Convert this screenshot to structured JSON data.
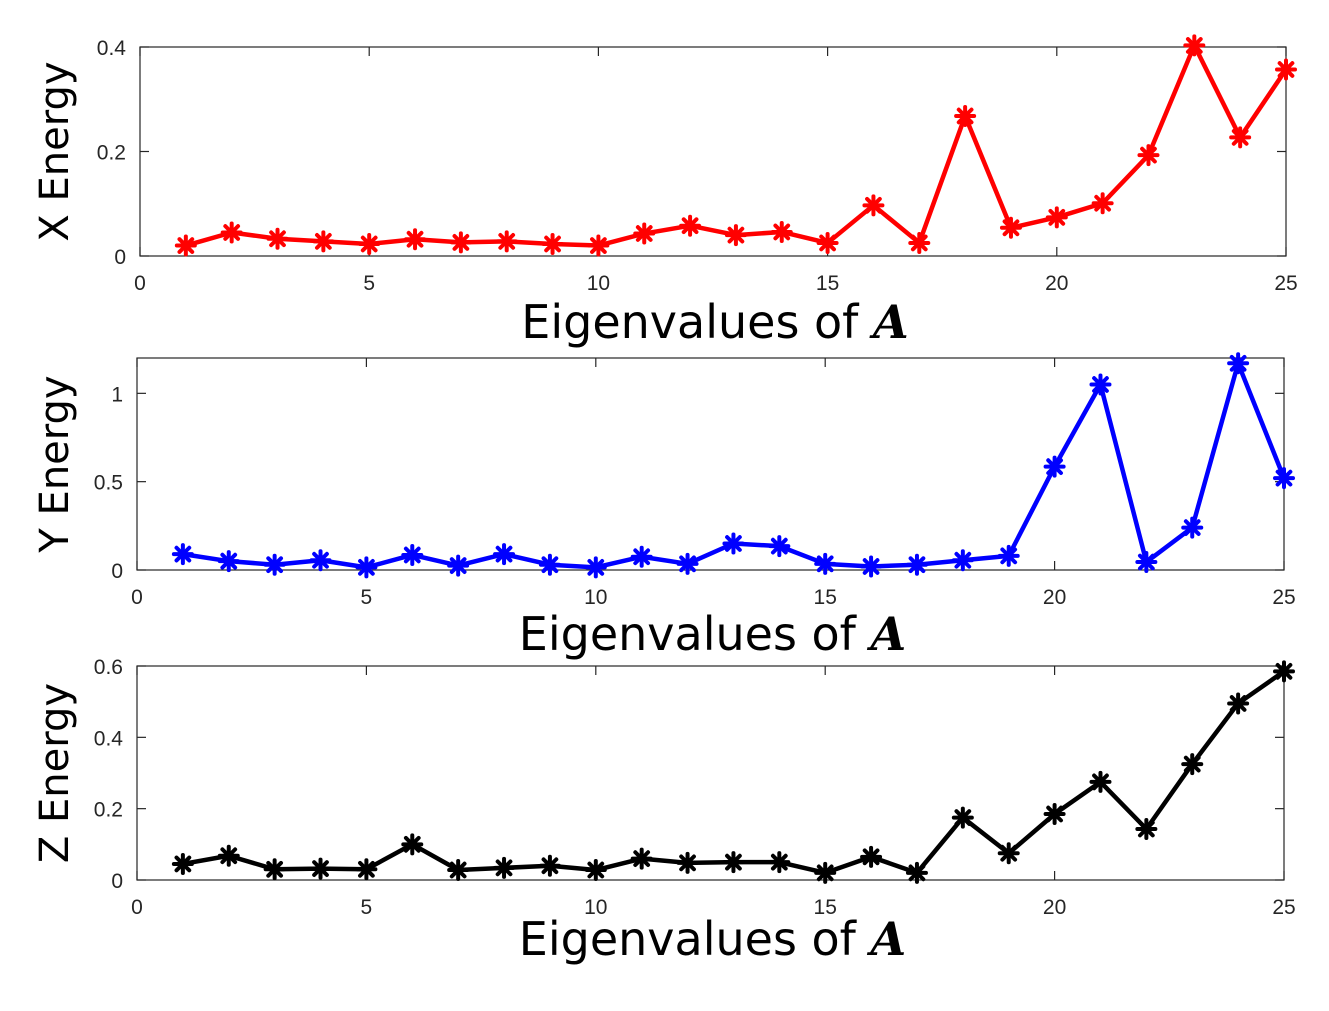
{
  "chart_data": [
    {
      "type": "line",
      "series": [
        {
          "name": "X Energy",
          "color": "#ff0000",
          "values": [
            0.02,
            0.045,
            0.033,
            0.028,
            0.023,
            0.032,
            0.026,
            0.028,
            0.023,
            0.02,
            0.043,
            0.058,
            0.04,
            0.046,
            0.025,
            0.097,
            0.025,
            0.268,
            0.054,
            0.074,
            0.101,
            0.193,
            0.403,
            0.227,
            0.357
          ]
        }
      ],
      "x": [
        1,
        2,
        3,
        4,
        5,
        6,
        7,
        8,
        9,
        10,
        11,
        12,
        13,
        14,
        15,
        16,
        17,
        18,
        19,
        20,
        21,
        22,
        23,
        24,
        25
      ],
      "xlim": [
        0,
        25
      ],
      "ylim": [
        0,
        0.4
      ],
      "xticks": [
        "0",
        "5",
        "10",
        "15",
        "20",
        "25"
      ],
      "yticks": [
        "0",
        "0.2",
        "0.4"
      ],
      "ytick_values": [
        0,
        0.2,
        0.4
      ],
      "xlabel_text": "Eigenvalues of ",
      "xlabel_math": "A",
      "ylabel": "X Energy"
    },
    {
      "type": "line",
      "series": [
        {
          "name": "Y Energy",
          "color": "#0000ff",
          "values": [
            0.09,
            0.05,
            0.03,
            0.055,
            0.015,
            0.085,
            0.025,
            0.09,
            0.03,
            0.015,
            0.075,
            0.035,
            0.15,
            0.135,
            0.035,
            0.02,
            0.03,
            0.055,
            0.08,
            0.585,
            1.05,
            0.045,
            0.24,
            1.17,
            0.52
          ]
        }
      ],
      "x": [
        1,
        2,
        3,
        4,
        5,
        6,
        7,
        8,
        9,
        10,
        11,
        12,
        13,
        14,
        15,
        16,
        17,
        18,
        19,
        20,
        21,
        22,
        23,
        24,
        25
      ],
      "xlim": [
        0,
        25
      ],
      "ylim": [
        0,
        1.2
      ],
      "xticks": [
        "0",
        "5",
        "10",
        "15",
        "20",
        "25"
      ],
      "yticks": [
        "0",
        "0.5",
        "1"
      ],
      "ytick_values": [
        0,
        0.5,
        1
      ],
      "xlabel_text": "Eigenvalues of ",
      "xlabel_math": "A",
      "ylabel": "Y Energy"
    },
    {
      "type": "line",
      "series": [
        {
          "name": "Z Energy",
          "color": "#000000",
          "values": [
            0.045,
            0.068,
            0.03,
            0.032,
            0.03,
            0.1,
            0.028,
            0.034,
            0.04,
            0.028,
            0.06,
            0.048,
            0.05,
            0.05,
            0.02,
            0.065,
            0.02,
            0.175,
            0.075,
            0.185,
            0.275,
            0.143,
            0.325,
            0.495,
            0.585
          ]
        }
      ],
      "x": [
        1,
        2,
        3,
        4,
        5,
        6,
        7,
        8,
        9,
        10,
        11,
        12,
        13,
        14,
        15,
        16,
        17,
        18,
        19,
        20,
        21,
        22,
        23,
        24,
        25
      ],
      "xlim": [
        0,
        25
      ],
      "ylim": [
        0,
        0.6
      ],
      "xticks": [
        "0",
        "5",
        "10",
        "15",
        "20",
        "25"
      ],
      "yticks": [
        "0",
        "0.2",
        "0.4",
        "0.6"
      ],
      "ytick_values": [
        0,
        0.2,
        0.4,
        0.6
      ],
      "xlabel_text": "Eigenvalues of ",
      "xlabel_math": "A",
      "ylabel": "Z Energy"
    }
  ]
}
